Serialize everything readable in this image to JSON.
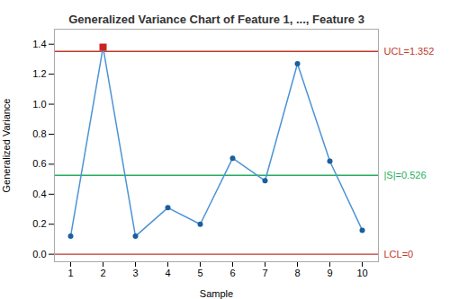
{
  "chart_data": {
    "type": "line",
    "title": "Generalized Variance Chart of Feature 1, ..., Feature 3",
    "xlabel": "Sample",
    "ylabel": "Generalized Variance",
    "x": [
      1,
      2,
      3,
      4,
      5,
      6,
      7,
      8,
      9,
      10
    ],
    "series": [
      {
        "type": "line",
        "color": "#4d94d5",
        "values": [
          0.12,
          1.38,
          0.12,
          0.31,
          0.2,
          0.64,
          0.49,
          1.27,
          0.62,
          0.16
        ]
      },
      {
        "type": "scatter",
        "marker": "circle",
        "color": "#1a5f9e",
        "values": [
          0.12,
          null,
          0.12,
          0.31,
          0.2,
          0.64,
          0.49,
          1.27,
          0.62,
          0.16
        ]
      },
      {
        "type": "scatter",
        "marker": "square",
        "color": "#cc2222",
        "values": [
          null,
          1.38,
          null,
          null,
          null,
          null,
          null,
          null,
          null,
          null
        ]
      }
    ],
    "hlines": [
      {
        "value": 1.352,
        "label": "UCL=1.352",
        "color": "#c0392b"
      },
      {
        "value": 0.526,
        "label": "|S|=0.526",
        "color": "#27ae60"
      },
      {
        "value": 0,
        "label": "LCL=0",
        "color": "#c0392b"
      }
    ],
    "xlim": [
      0.5,
      10.5
    ],
    "xticks": [
      1,
      2,
      3,
      4,
      5,
      6,
      7,
      8,
      9,
      10
    ],
    "ylim": [
      -0.05,
      1.5
    ],
    "yticks": [
      {
        "value": 0,
        "label": "0.0"
      },
      0.2,
      0.4,
      0.6,
      0.8,
      {
        "value": 1,
        "label": "1.0"
      },
      1.2,
      1.4
    ],
    "grid": false
  }
}
